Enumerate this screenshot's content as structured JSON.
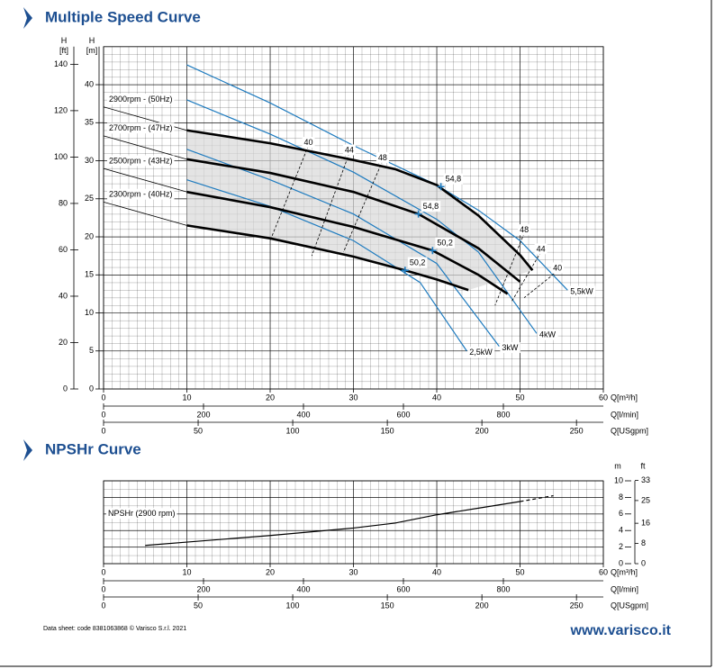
{
  "chart_data": [
    {
      "type": "line",
      "title": "Multiple Speed Curve",
      "xlabel": "Q[m³/h]",
      "xlim": [
        0,
        60
      ],
      "xticks": [
        0,
        10,
        20,
        30,
        40,
        50,
        60
      ],
      "x2label": "Q[l/min]",
      "x2lim": [
        0,
        1000
      ],
      "x2ticks": [
        0,
        200,
        400,
        600,
        800
      ],
      "x3label": "Q[USgpm]",
      "x3lim": [
        0,
        264.2
      ],
      "x3ticks": [
        0,
        50,
        100,
        150,
        200,
        250
      ],
      "ylabel": [
        "H",
        "[m]"
      ],
      "ylim": [
        0,
        45
      ],
      "yticks": [
        0,
        5,
        10,
        15,
        20,
        25,
        30,
        35,
        40
      ],
      "y2label": [
        "H",
        "[ft]"
      ],
      "y2lim": [
        0,
        147.6
      ],
      "y2ticks": [
        0,
        20,
        40,
        60,
        80,
        100,
        120,
        140
      ],
      "grid": true,
      "area_color": "#d9d9d9",
      "series": [
        {
          "name": "2900rpm - (50Hz)",
          "role": "speed",
          "color": "#000000",
          "x": [
            10,
            20,
            30,
            35,
            40,
            45,
            50,
            51.5
          ],
          "values": [
            34,
            32.3,
            30.1,
            28.9,
            26.8,
            22.8,
            17.6,
            15.6
          ]
        },
        {
          "name": "2700rpm - (47Hz)",
          "role": "speed",
          "color": "#000000",
          "x": [
            10,
            20,
            30,
            37.8,
            45,
            50
          ],
          "values": [
            30.2,
            28.4,
            25.9,
            23,
            18.5,
            14.1
          ]
        },
        {
          "name": "2500rpm - (43Hz)",
          "role": "speed",
          "color": "#000000",
          "x": [
            10,
            20,
            30,
            39.5,
            45,
            48.5
          ],
          "values": [
            25.9,
            23.9,
            21.3,
            18.2,
            15,
            12.5
          ]
        },
        {
          "name": "2300rpm - (40Hz)",
          "role": "speed",
          "color": "#000000",
          "x": [
            10,
            20,
            30,
            36.2,
            40,
            43.8
          ],
          "values": [
            21.5,
            19.8,
            17.4,
            15.6,
            14.4,
            13
          ]
        },
        {
          "name": "5,5kW",
          "role": "power",
          "color": "#1e7bbf",
          "x": [
            10,
            20,
            30,
            40,
            45,
            50,
            55.7
          ],
          "values": [
            42.6,
            37.6,
            32,
            26.8,
            23.5,
            19.5,
            13
          ]
        },
        {
          "name": "4kW",
          "role": "power",
          "color": "#1e7bbf",
          "x": [
            10,
            20,
            30,
            40,
            45,
            52
          ],
          "values": [
            38,
            33.5,
            28.5,
            22.3,
            18,
            7.3
          ]
        },
        {
          "name": "3kW",
          "role": "power",
          "color": "#1e7bbf",
          "x": [
            10,
            20,
            30,
            40,
            47.5
          ],
          "values": [
            31.5,
            27.5,
            23,
            16.5,
            5.6
          ]
        },
        {
          "name": "2,5kW",
          "role": "power",
          "color": "#1e7bbf",
          "x": [
            10,
            20,
            30,
            38,
            43.6
          ],
          "values": [
            27.5,
            24,
            19.5,
            14,
            5
          ]
        },
        {
          "name": "40",
          "role": "efficiency",
          "color": "#000000",
          "x": [
            24.6,
            20
          ],
          "values": [
            32,
            19.5
          ]
        },
        {
          "name": "44",
          "role": "efficiency",
          "color": "#000000",
          "x": [
            29.5,
            25
          ],
          "values": [
            31,
            17.5
          ]
        },
        {
          "name": "48",
          "role": "efficiency",
          "color": "#000000",
          "x": [
            33.5,
            28.8
          ],
          "values": [
            30,
            18
          ]
        },
        {
          "name": "48",
          "role": "efficiency",
          "color": "#000000",
          "x": [
            50.5,
            47
          ],
          "values": [
            20.5,
            11
          ]
        },
        {
          "name": "44",
          "role": "efficiency",
          "color": "#000000",
          "x": [
            52.5,
            49
          ],
          "values": [
            18,
            11.5
          ]
        },
        {
          "name": "40",
          "role": "efficiency",
          "color": "#000000",
          "x": [
            54.5,
            50.5
          ],
          "values": [
            15.5,
            12
          ]
        }
      ],
      "annotations": [
        {
          "x": 40.5,
          "y": 26.6,
          "label": "54,8"
        },
        {
          "x": 37.8,
          "y": 23,
          "label": "54,8"
        },
        {
          "x": 39.5,
          "y": 18.2,
          "label": "50,2"
        },
        {
          "x": 36.2,
          "y": 15.6,
          "label": "50,2"
        }
      ]
    },
    {
      "type": "line",
      "title": "NPSHr Curve",
      "xlabel": "Q[m³/h]",
      "xlim": [
        0,
        60
      ],
      "xticks": [
        0,
        10,
        20,
        30,
        40,
        50,
        60
      ],
      "x2label": "Q[l/min]",
      "x2lim": [
        0,
        1000
      ],
      "x2ticks": [
        0,
        200,
        400,
        600,
        800
      ],
      "x3label": "Q[USgpm]",
      "x3lim": [
        0,
        264.2
      ],
      "x3ticks": [
        0,
        50,
        100,
        150,
        200,
        250
      ],
      "ylabel": [
        "m"
      ],
      "ylim": [
        0,
        10
      ],
      "yticks": [
        0,
        2,
        4,
        6,
        8,
        10
      ],
      "y2label": [
        "ft"
      ],
      "y2lim": [
        0,
        32.81
      ],
      "y2ticks": [
        0,
        8,
        16,
        25,
        33
      ],
      "grid": true,
      "series": [
        {
          "name": "NPSHr (2900 rpm)",
          "role": "npsh",
          "color": "#000000",
          "x": [
            5,
            10,
            20,
            30,
            35,
            40,
            45,
            50
          ],
          "values": [
            2.2,
            2.6,
            3.4,
            4.3,
            4.9,
            5.9,
            6.7,
            7.5
          ]
        },
        {
          "role": "npsh",
          "dashed": true,
          "color": "#000000",
          "x": [
            50,
            54
          ],
          "values": [
            7.5,
            8.2
          ]
        }
      ]
    }
  ],
  "footer": {
    "code": "Data sheet: code 8381063868 © Varisco S.r.l. 2021",
    "website": "www.varisco.it"
  }
}
